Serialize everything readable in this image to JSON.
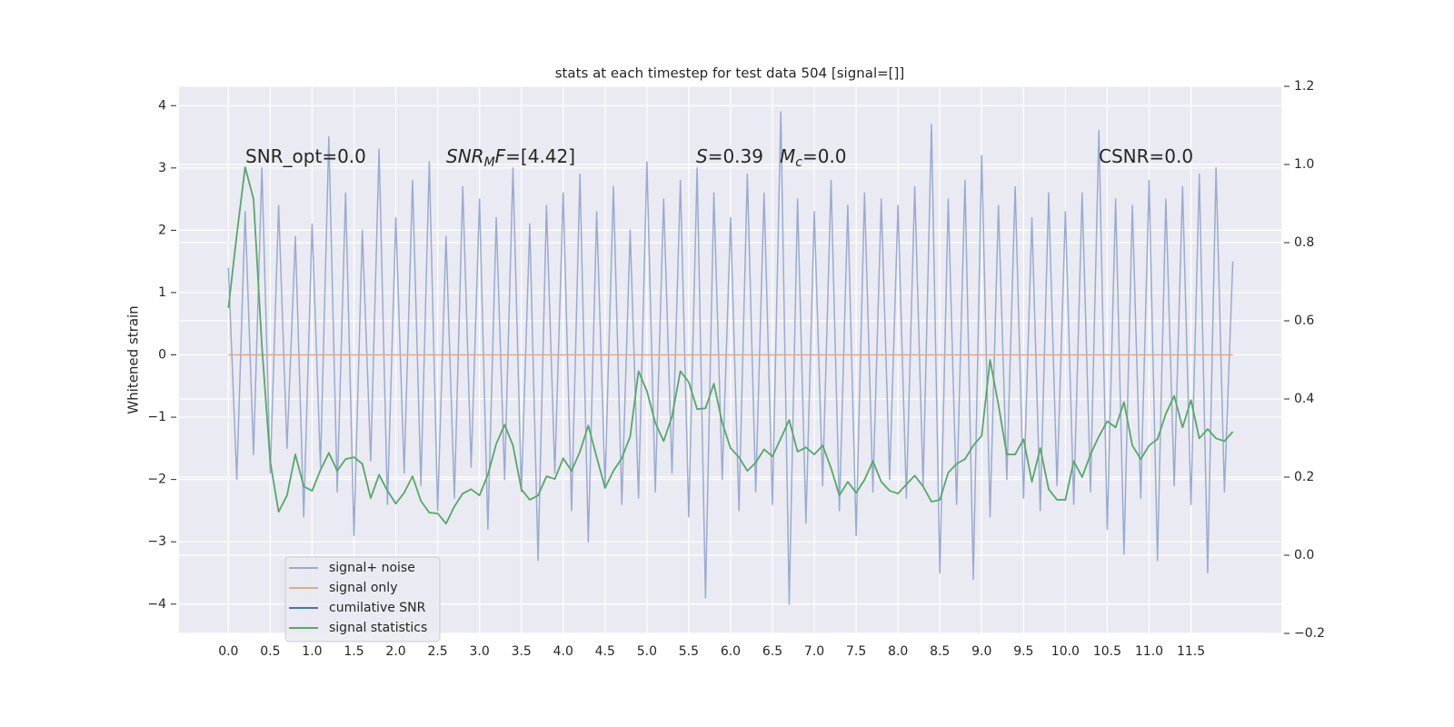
{
  "chart_data": {
    "type": "line",
    "title": "stats at each timestep for test data 504 [signal=[]]",
    "ylabel": "Whitened strain",
    "xlim": [
      -0.59,
      12.58
    ],
    "ylim": [
      -4.47,
      4.31
    ],
    "y2lim": [
      -0.2,
      1.2
    ],
    "grid": true,
    "legend": "lower left",
    "xticks": [
      {
        "value": 0,
        "label": "0.0"
      },
      0.5,
      {
        "value": 1,
        "label": "1.0"
      },
      1.5,
      {
        "value": 2,
        "label": "2.0"
      },
      2.5,
      {
        "value": 3,
        "label": "3.0"
      },
      3.5,
      {
        "value": 4,
        "label": "4.0"
      },
      4.5,
      {
        "value": 5,
        "label": "5.0"
      },
      5.5,
      {
        "value": 6,
        "label": "6.0"
      },
      6.5,
      {
        "value": 7,
        "label": "7.0"
      },
      7.5,
      {
        "value": 8,
        "label": "8.0"
      },
      8.5,
      {
        "value": 9,
        "label": "9.0"
      },
      9.5,
      {
        "value": 10,
        "label": "10.0"
      },
      10.5,
      {
        "value": 11,
        "label": "11.0"
      },
      11.5
    ],
    "yticks": [
      {
        "value": -4,
        "label": "−4"
      },
      {
        "value": -3,
        "label": "−3"
      },
      {
        "value": -2,
        "label": "−2"
      },
      {
        "value": -1,
        "label": "−1"
      },
      0,
      1,
      2,
      3,
      4
    ],
    "y2ticks": [
      {
        "value": -0.2,
        "label": "−0.2"
      },
      {
        "value": 0,
        "label": "0.0"
      },
      0.2,
      0.4,
      0.6,
      0.8,
      {
        "value": 1,
        "label": "1.0"
      },
      1.2
    ],
    "annotations": [
      [
        {
          "text": "SNR_opt=0.0",
          "style": "normal"
        }
      ],
      [
        {
          "text": "SNR",
          "style": "italic"
        },
        {
          "text": "M",
          "style": "sub"
        },
        {
          "text": "F",
          "style": "italic"
        },
        {
          "text": "=[4.42]",
          "style": "normal"
        }
      ],
      [
        {
          "text": "S",
          "style": "italic"
        },
        {
          "text": "=0.39",
          "style": "normal"
        }
      ],
      [
        {
          "text": "M",
          "style": "italic"
        },
        {
          "text": "c",
          "style": "sub"
        },
        {
          "text": "=0.0",
          "style": "normal"
        }
      ],
      [
        {
          "text": "CSNR=0.0",
          "style": "normal"
        }
      ]
    ],
    "x": [
      0,
      0.1,
      0.2,
      0.3,
      0.4,
      0.5,
      0.6,
      0.7,
      0.8,
      0.9,
      1,
      1.1,
      1.2,
      1.3,
      1.4,
      1.5,
      1.6,
      1.7,
      1.8,
      1.9,
      2,
      2.1,
      2.2,
      2.3,
      2.4,
      2.5,
      2.6,
      2.7,
      2.8,
      2.9,
      3,
      3.1,
      3.2,
      3.3,
      3.4,
      3.5,
      3.6,
      3.7,
      3.8,
      3.9,
      4,
      4.1,
      4.2,
      4.3,
      4.4,
      4.5,
      4.6,
      4.7,
      4.8,
      4.9,
      5,
      5.1,
      5.2,
      5.3,
      5.4,
      5.5,
      5.6,
      5.7,
      5.8,
      5.9,
      6,
      6.1,
      6.2,
      6.3,
      6.4,
      6.5,
      6.6,
      6.7,
      6.8,
      6.9,
      7,
      7.1,
      7.2,
      7.3,
      7.4,
      7.5,
      7.6,
      7.7,
      7.8,
      7.9,
      8,
      8.1,
      8.2,
      8.3,
      8.4,
      8.5,
      8.6,
      8.7,
      8.8,
      8.9,
      9,
      9.1,
      9.2,
      9.3,
      9.4,
      9.5,
      9.6,
      9.7,
      9.8,
      9.9,
      10,
      10.1,
      10.2,
      10.3,
      10.4,
      10.5,
      10.6,
      10.7,
      10.8,
      10.9,
      11,
      11.1,
      11.2,
      11.3,
      11.4,
      11.5,
      11.6,
      11.7,
      11.8,
      11.9,
      12
    ],
    "series": [
      {
        "name": "signal+ noise",
        "color": "#9aabd0",
        "values": [
          1.4,
          -2.0,
          2.3,
          -1.6,
          3.0,
          -1.9,
          2.4,
          -1.5,
          1.9,
          -2.6,
          2.1,
          -1.8,
          3.5,
          -2.2,
          2.6,
          -2.9,
          2.0,
          -1.7,
          3.3,
          -2.4,
          2.2,
          -1.9,
          2.8,
          -2.1,
          3.1,
          -2.5,
          1.9,
          -2.3,
          2.7,
          -1.8,
          2.5,
          -2.8,
          2.2,
          -2.0,
          3.0,
          -2.2,
          2.1,
          -3.3,
          2.4,
          -1.9,
          2.6,
          -2.5,
          2.9,
          -3.0,
          2.3,
          -2.1,
          2.7,
          -2.4,
          2.0,
          -2.3,
          3.1,
          -2.2,
          2.5,
          -1.9,
          2.8,
          -2.6,
          3.0,
          -3.9,
          2.6,
          -2.0,
          2.2,
          -2.5,
          2.9,
          -2.2,
          2.6,
          -2.4,
          3.9,
          -4.0,
          2.5,
          -2.7,
          2.3,
          -2.1,
          2.8,
          -2.5,
          2.4,
          -2.9,
          2.6,
          -2.2,
          2.5,
          -2.0,
          2.4,
          -2.3,
          2.7,
          -2.1,
          3.7,
          -3.5,
          2.5,
          -2.4,
          2.8,
          -3.6,
          3.2,
          -2.6,
          2.4,
          -2.0,
          2.7,
          -2.3,
          2.2,
          -2.5,
          2.6,
          -2.1,
          2.3,
          -2.4,
          2.6,
          -2.2,
          3.6,
          -2.8,
          2.5,
          -3.2,
          2.4,
          -2.3,
          2.8,
          -3.3,
          2.5,
          -2.1,
          2.7,
          -2.4,
          2.9,
          -3.5,
          3.0,
          -2.2,
          1.5
        ]
      },
      {
        "name": "signal only",
        "color": "#e0a890",
        "values": [
          0,
          0,
          0,
          0,
          0,
          0,
          0,
          0,
          0,
          0,
          0,
          0,
          0,
          0,
          0,
          0,
          0,
          0,
          0,
          0,
          0,
          0,
          0,
          0,
          0,
          0,
          0,
          0,
          0,
          0,
          0,
          0,
          0,
          0,
          0,
          0,
          0,
          0,
          0,
          0,
          0,
          0,
          0,
          0,
          0,
          0,
          0,
          0,
          0,
          0,
          0,
          0,
          0,
          0,
          0,
          0,
          0,
          0,
          0,
          0,
          0,
          0,
          0,
          0,
          0,
          0,
          0,
          0,
          0,
          0,
          0,
          0,
          0,
          0,
          0,
          0,
          0,
          0,
          0,
          0,
          0,
          0,
          0,
          0,
          0,
          0,
          0,
          0,
          0,
          0,
          0,
          0,
          0,
          0,
          0,
          0,
          0,
          0,
          0,
          0,
          0,
          0,
          0,
          0,
          0,
          0,
          0,
          0,
          0,
          0,
          0,
          0,
          0,
          0,
          0,
          0,
          0,
          0,
          0,
          0,
          0
        ]
      },
      {
        "name": "cumilative SNR",
        "color": "#4c72b0"
      },
      {
        "name": "signal statistics",
        "color": "#55a868",
        "axis": "y2",
        "values": [
          0.633,
          0.82,
          0.993,
          0.912,
          0.536,
          0.239,
          0.111,
          0.153,
          0.258,
          0.176,
          0.165,
          0.218,
          0.262,
          0.216,
          0.246,
          0.251,
          0.234,
          0.146,
          0.206,
          0.165,
          0.132,
          0.16,
          0.202,
          0.139,
          0.109,
          0.107,
          0.081,
          0.125,
          0.158,
          0.169,
          0.153,
          0.206,
          0.285,
          0.334,
          0.281,
          0.169,
          0.142,
          0.153,
          0.202,
          0.195,
          0.248,
          0.216,
          0.265,
          0.332,
          0.251,
          0.172,
          0.216,
          0.248,
          0.304,
          0.471,
          0.42,
          0.339,
          0.292,
          0.355,
          0.471,
          0.443,
          0.374,
          0.376,
          0.439,
          0.339,
          0.274,
          0.251,
          0.216,
          0.237,
          0.271,
          0.253,
          0.299,
          0.346,
          0.265,
          0.276,
          0.258,
          0.281,
          0.223,
          0.153,
          0.188,
          0.16,
          0.193,
          0.241,
          0.188,
          0.165,
          0.158,
          0.181,
          0.204,
          0.176,
          0.137,
          0.142,
          0.211,
          0.234,
          0.246,
          0.281,
          0.306,
          0.5,
          0.385,
          0.258,
          0.258,
          0.297,
          0.188,
          0.274,
          0.169,
          0.142,
          0.142,
          0.241,
          0.2,
          0.258,
          0.304,
          0.343,
          0.327,
          0.392,
          0.281,
          0.246,
          0.281,
          0.297,
          0.362,
          0.408,
          0.327,
          0.397,
          0.299,
          0.323,
          0.299,
          0.292,
          0.316
        ]
      }
    ]
  }
}
